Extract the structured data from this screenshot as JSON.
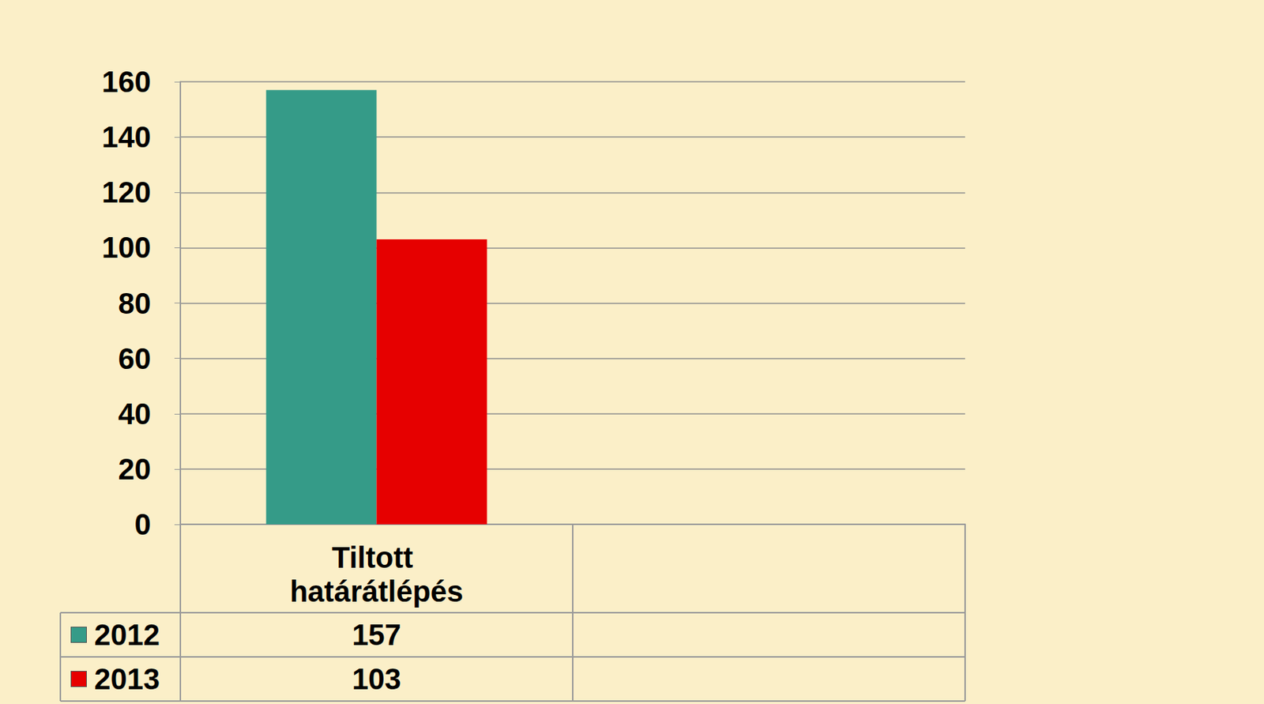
{
  "chart_data": {
    "type": "bar",
    "categories": [
      "Tiltott határátlépés",
      null
    ],
    "series": [
      {
        "name": "2012",
        "color": "#359b88",
        "values": [
          157,
          null
        ]
      },
      {
        "name": "2013",
        "color": "#e60000",
        "values": [
          103,
          null
        ]
      }
    ],
    "ylim": [
      0,
      160
    ],
    "yticks": [
      0,
      20,
      40,
      60,
      80,
      100,
      120,
      140,
      160
    ],
    "grid": true
  }
}
